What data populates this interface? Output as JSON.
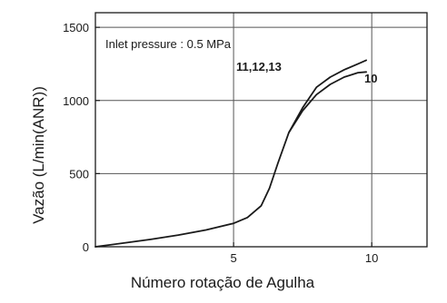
{
  "chart_data": {
    "type": "line",
    "xlabel": "Número rotação de Agulha",
    "ylabel": "Vazão (L/min(ANR))",
    "xlim": [
      0,
      12
    ],
    "ylim": [
      0,
      1600
    ],
    "x_ticks": [
      5,
      10
    ],
    "y_ticks": [
      0,
      500,
      1000,
      1500
    ],
    "x_tick_labels": [
      "5",
      "10"
    ],
    "y_tick_labels": [
      "0",
      "500",
      "1000",
      "1500"
    ],
    "grid": true,
    "annotation": "Inlet pressure : 0.5 MPa",
    "series": [
      {
        "name": "11,12,13",
        "x": [
          0,
          1,
          2,
          3,
          4,
          5,
          5.5,
          6,
          6.3,
          6.6,
          7,
          7.5,
          8,
          8.5,
          9,
          9.5,
          9.8
        ],
        "y": [
          0,
          25,
          50,
          80,
          115,
          160,
          200,
          280,
          400,
          570,
          780,
          950,
          1090,
          1160,
          1210,
          1250,
          1275
        ]
      },
      {
        "name": "10",
        "x": [
          7,
          7.5,
          8,
          8.5,
          9,
          9.5,
          9.8
        ],
        "y": [
          780,
          930,
          1040,
          1110,
          1160,
          1190,
          1195
        ]
      }
    ]
  }
}
